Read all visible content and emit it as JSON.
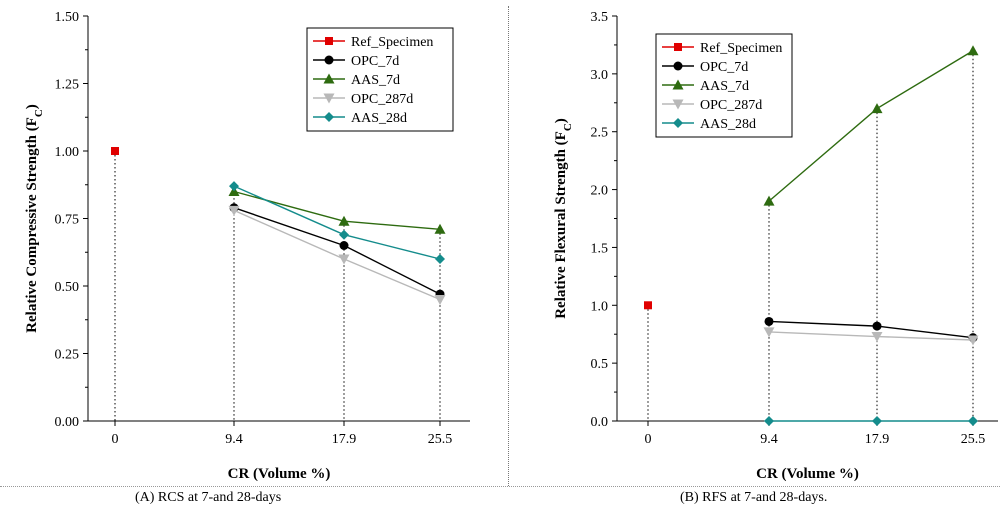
{
  "chart_data": [
    {
      "type": "line",
      "title": "",
      "xlabel": "CR (Volume %)",
      "ylabel": "Relative Compressive Strength (F",
      "ylabel_sub": "C",
      "ylabel_close": ")",
      "ylim": [
        0,
        1.5
      ],
      "yticks": [
        "0.00",
        "0.25",
        "0.50",
        "0.75",
        "1.00",
        "1.25",
        "1.50"
      ],
      "categories": [
        "0",
        "9.4",
        "17.9",
        "25.5"
      ],
      "grid": false,
      "legend": "top-right",
      "caption": "(A)  RCS at 7-and 28-days",
      "series": [
        {
          "name": "Ref_Specimen",
          "color": "#e00000",
          "marker": "square",
          "points": [
            [
              0,
              1.0
            ]
          ]
        },
        {
          "name": "OPC_7d",
          "color": "#000000",
          "marker": "circle",
          "points": [
            [
              1,
              0.79
            ],
            [
              2,
              0.65
            ],
            [
              3,
              0.47
            ]
          ]
        },
        {
          "name": "AAS_7d",
          "color": "#2e6b10",
          "marker": "triangle",
          "points": [
            [
              1,
              0.85
            ],
            [
              2,
              0.74
            ],
            [
              3,
              0.71
            ]
          ]
        },
        {
          "name": "OPC_287d",
          "color": "#b8b8b8",
          "marker": "triangle-down",
          "points": [
            [
              1,
              0.78
            ],
            [
              2,
              0.6
            ],
            [
              3,
              0.45
            ]
          ]
        },
        {
          "name": "AAS_28d",
          "color": "#148c8c",
          "marker": "diamond",
          "points": [
            [
              1,
              0.87
            ],
            [
              2,
              0.69
            ],
            [
              3,
              0.6
            ]
          ]
        }
      ]
    },
    {
      "type": "line",
      "title": "",
      "xlabel": "CR (Volume %)",
      "ylabel": "Relative Flexural Strength (F",
      "ylabel_sub": "C",
      "ylabel_close": ")",
      "ylim": [
        0,
        3.5
      ],
      "yticks": [
        "0.0",
        "0.5",
        "1.0",
        "1.5",
        "2.0",
        "2.5",
        "3.0",
        "3.5"
      ],
      "categories": [
        "0",
        "9.4",
        "17.9",
        "25.5"
      ],
      "grid": false,
      "legend": "top-left",
      "caption": "(B)  RFS at 7-and 28-days.",
      "series": [
        {
          "name": "Ref_Specimen",
          "color": "#e00000",
          "marker": "square",
          "points": [
            [
              0,
              1.0
            ]
          ]
        },
        {
          "name": "OPC_7d",
          "color": "#000000",
          "marker": "circle",
          "points": [
            [
              1,
              0.86
            ],
            [
              2,
              0.82
            ],
            [
              3,
              0.72
            ]
          ]
        },
        {
          "name": "AAS_7d",
          "color": "#2e6b10",
          "marker": "triangle",
          "points": [
            [
              1,
              1.9
            ],
            [
              2,
              2.7
            ],
            [
              3,
              3.2
            ]
          ]
        },
        {
          "name": "OPC_287d",
          "color": "#b8b8b8",
          "marker": "triangle-down",
          "points": [
            [
              1,
              0.77
            ],
            [
              2,
              0.73
            ],
            [
              3,
              0.7
            ]
          ]
        },
        {
          "name": "AAS_28d",
          "color": "#148c8c",
          "marker": "diamond",
          "points": [
            [
              1,
              0.0
            ],
            [
              2,
              0.0
            ],
            [
              3,
              0.0
            ]
          ]
        }
      ]
    }
  ]
}
